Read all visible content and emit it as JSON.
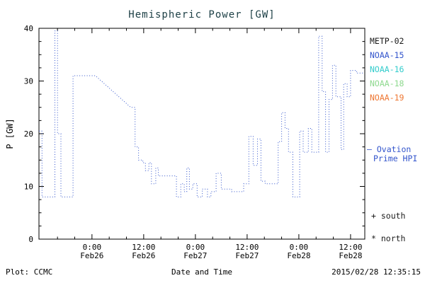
{
  "title": "Hemispheric Power [GW]",
  "footer": {
    "plot_credit": "Plot: CCMC",
    "timestamp": "2015/02/28 12:35:15"
  },
  "legend": {
    "satellites": [
      {
        "label": "METP-02",
        "color": "#1a1a1a"
      },
      {
        "label": "NOAA-15",
        "color": "#3355cc"
      },
      {
        "label": "NOAA-16",
        "color": "#33cccc"
      },
      {
        "label": "NOAA-18",
        "color": "#8fd98f"
      },
      {
        "label": "NOAA-19",
        "color": "#ee7733"
      }
    ],
    "ovation_line1": "— Ovation",
    "ovation_line2": "Prime HPI",
    "marker_south": "+ south",
    "marker_north": "* north"
  },
  "colors": {
    "line": "#3355cc",
    "axis": "#000000",
    "title": "#1c3f45",
    "background": "#ffffff"
  },
  "chart_data": {
    "type": "line",
    "style": "dotted-step",
    "title": "Hemispheric Power [GW]",
    "xlabel": "Date and Time",
    "ylabel": "P [GW]",
    "series_name": "Ovation Prime HPI",
    "ylim": [
      0,
      40
    ],
    "xlim_hours_from_feb26_0000": [
      -12.3,
      63.3
    ],
    "yticks": [
      0,
      10,
      20,
      30,
      40
    ],
    "y_minor_step": 2.5,
    "x_minor_step_hours": 4,
    "xticks": [
      {
        "t": 0,
        "time": "0:00",
        "date": "Feb26"
      },
      {
        "t": 12,
        "time": "12:00",
        "date": "Feb26"
      },
      {
        "t": 24,
        "time": "0:00",
        "date": "Feb27"
      },
      {
        "t": 36,
        "time": "12:00",
        "date": "Feb27"
      },
      {
        "t": 48,
        "time": "0:00",
        "date": "Feb28"
      },
      {
        "t": 60,
        "time": "12:00",
        "date": "Feb28"
      }
    ],
    "points_t_hours_P_GW": [
      [
        -12.3,
        20.5
      ],
      [
        -11.6,
        20.5
      ],
      [
        -11.6,
        8
      ],
      [
        -8.6,
        8
      ],
      [
        -8.6,
        39.5
      ],
      [
        -8.0,
        39.5
      ],
      [
        -8.0,
        20
      ],
      [
        -7.2,
        20
      ],
      [
        -7.2,
        8
      ],
      [
        -4.4,
        8
      ],
      [
        -4.4,
        31
      ],
      [
        0.8,
        31
      ],
      [
        9.0,
        25
      ],
      [
        10.0,
        25
      ],
      [
        10.0,
        17.5
      ],
      [
        10.8,
        17.5
      ],
      [
        10.8,
        15
      ],
      [
        11.8,
        15
      ],
      [
        11.8,
        14.5
      ],
      [
        12.4,
        14.5
      ],
      [
        12.4,
        13
      ],
      [
        13.2,
        13
      ],
      [
        13.2,
        14.5
      ],
      [
        13.8,
        14.5
      ],
      [
        13.8,
        10.5
      ],
      [
        14.8,
        10.5
      ],
      [
        14.8,
        13.5
      ],
      [
        15.4,
        13.5
      ],
      [
        15.4,
        12
      ],
      [
        19.6,
        12
      ],
      [
        19.6,
        8
      ],
      [
        20.6,
        8
      ],
      [
        20.6,
        10.5
      ],
      [
        21.4,
        10.5
      ],
      [
        21.4,
        9
      ],
      [
        22.0,
        9
      ],
      [
        22.0,
        13.5
      ],
      [
        22.6,
        13.5
      ],
      [
        22.6,
        9.5
      ],
      [
        23.4,
        9.5
      ],
      [
        23.4,
        10.5
      ],
      [
        24.4,
        10.5
      ],
      [
        24.4,
        8
      ],
      [
        25.6,
        8
      ],
      [
        25.6,
        9.5
      ],
      [
        26.8,
        9.5
      ],
      [
        26.8,
        8
      ],
      [
        27.6,
        8
      ],
      [
        27.6,
        9
      ],
      [
        28.8,
        9
      ],
      [
        28.8,
        12.5
      ],
      [
        30.0,
        12.5
      ],
      [
        30.0,
        9.5
      ],
      [
        32.4,
        9.5
      ],
      [
        32.4,
        9
      ],
      [
        35.2,
        9
      ],
      [
        35.2,
        10.5
      ],
      [
        36.4,
        10.5
      ],
      [
        36.4,
        19.5
      ],
      [
        37.4,
        19.5
      ],
      [
        37.4,
        14
      ],
      [
        38.4,
        14
      ],
      [
        38.4,
        19
      ],
      [
        39.2,
        19
      ],
      [
        39.2,
        11
      ],
      [
        40.2,
        11
      ],
      [
        40.2,
        10.5
      ],
      [
        43.2,
        10.5
      ],
      [
        43.2,
        18.5
      ],
      [
        44.0,
        18.5
      ],
      [
        44.0,
        24
      ],
      [
        44.8,
        24
      ],
      [
        44.8,
        21
      ],
      [
        45.6,
        21
      ],
      [
        45.6,
        16.5
      ],
      [
        46.6,
        16.5
      ],
      [
        46.6,
        8
      ],
      [
        48.2,
        8
      ],
      [
        48.2,
        20.5
      ],
      [
        49.0,
        20.5
      ],
      [
        49.0,
        16.5
      ],
      [
        50.2,
        16.5
      ],
      [
        50.2,
        21
      ],
      [
        51.0,
        21
      ],
      [
        51.0,
        16.5
      ],
      [
        52.6,
        16.5
      ],
      [
        52.6,
        38.5
      ],
      [
        53.4,
        38.5
      ],
      [
        53.4,
        28
      ],
      [
        54.2,
        28
      ],
      [
        54.2,
        16.5
      ],
      [
        55.0,
        16.5
      ],
      [
        55.0,
        26.5
      ],
      [
        55.8,
        26.5
      ],
      [
        55.8,
        33
      ],
      [
        56.6,
        33
      ],
      [
        56.6,
        27
      ],
      [
        57.8,
        27
      ],
      [
        57.8,
        17
      ],
      [
        58.4,
        17
      ],
      [
        58.4,
        29.5
      ],
      [
        59.2,
        29.5
      ],
      [
        59.2,
        27
      ],
      [
        60.0,
        27
      ],
      [
        60.0,
        32
      ],
      [
        61.4,
        32
      ],
      [
        61.4,
        31.5
      ],
      [
        63.2,
        31.5
      ]
    ]
  }
}
